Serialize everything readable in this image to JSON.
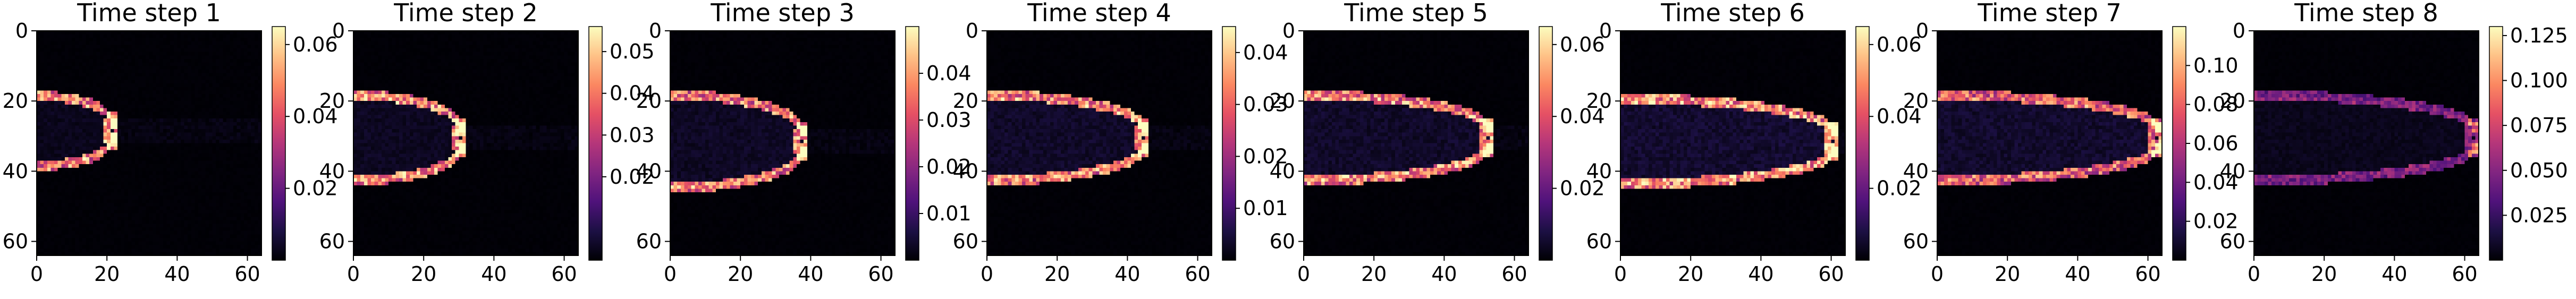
{
  "chart_data": {
    "type": "heatmap",
    "colormap": "magma",
    "colormap_stops": [
      "#000004",
      "#1c1044",
      "#4f127b",
      "#812581",
      "#b5367a",
      "#e55064",
      "#fb8761",
      "#fec287",
      "#fcfdbf"
    ],
    "grid": false,
    "panels": [
      {
        "title": "Time step 1",
        "xticks": [
          0,
          20,
          40,
          60
        ],
        "yticks": [
          0,
          20,
          40,
          60
        ],
        "xlim": [
          0,
          64
        ],
        "ylim": [
          64,
          0
        ],
        "colorbar": {
          "range": [
            0,
            0.065
          ],
          "ticks": [
            0.02,
            0.04,
            0.06
          ],
          "tick_labels": [
            "0.02",
            "0.04",
            "0.06"
          ]
        },
        "front": {
          "nose_x": 21,
          "center_y": 28,
          "half_width": 9,
          "tail_x": 0,
          "peak": 0.062,
          "smear": 0.25
        }
      },
      {
        "title": "Time step 2",
        "xticks": [
          0,
          20,
          40,
          60
        ],
        "yticks": [
          0,
          20,
          40,
          60
        ],
        "xlim": [
          0,
          64
        ],
        "ylim": [
          64,
          0
        ],
        "colorbar": {
          "range": [
            0,
            0.056
          ],
          "ticks": [
            0.02,
            0.03,
            0.04,
            0.05
          ],
          "tick_labels": [
            "0.02",
            "0.03",
            "0.04",
            "0.05"
          ]
        },
        "front": {
          "nose_x": 30,
          "center_y": 30,
          "half_width": 11,
          "tail_x": 0,
          "peak": 0.054,
          "smear": 0.3
        }
      },
      {
        "title": "Time step 3",
        "xticks": [
          0,
          20,
          40,
          60
        ],
        "yticks": [
          0,
          20,
          40,
          60
        ],
        "xlim": [
          0,
          64
        ],
        "ylim": [
          64,
          0
        ],
        "colorbar": {
          "range": [
            0,
            0.05
          ],
          "ticks": [
            0.01,
            0.02,
            0.03,
            0.04
          ],
          "tick_labels": [
            "0.01",
            "0.02",
            "0.03",
            "0.04"
          ]
        },
        "front": {
          "nose_x": 37,
          "center_y": 31,
          "half_width": 12,
          "tail_x": 0,
          "peak": 0.046,
          "smear": 0.35
        }
      },
      {
        "title": "Time step 4",
        "xticks": [
          0,
          20,
          40,
          60
        ],
        "yticks": [
          0,
          20,
          40,
          60
        ],
        "xlim": [
          0,
          64
        ],
        "ylim": [
          64,
          0
        ],
        "colorbar": {
          "range": [
            0,
            0.045
          ],
          "ticks": [
            0.01,
            0.02,
            0.03,
            0.04
          ],
          "tick_labels": [
            "0.01",
            "0.02",
            "0.03",
            "0.04"
          ]
        },
        "front": {
          "nose_x": 44,
          "center_y": 30,
          "half_width": 11,
          "tail_x": 0,
          "peak": 0.042,
          "smear": 0.4
        }
      },
      {
        "title": "Time step 5",
        "xticks": [
          0,
          20,
          40,
          60
        ],
        "yticks": [
          0,
          20,
          40,
          60
        ],
        "xlim": [
          0,
          64
        ],
        "ylim": [
          64,
          0
        ],
        "colorbar": {
          "range": [
            0,
            0.065
          ],
          "ticks": [
            0.02,
            0.04,
            0.06
          ],
          "tick_labels": [
            "0.02",
            "0.04",
            "0.06"
          ]
        },
        "front": {
          "nose_x": 52,
          "center_y": 30,
          "half_width": 11,
          "tail_x": 0,
          "peak": 0.062,
          "smear": 0.4
        }
      },
      {
        "title": "Time step 6",
        "xticks": [
          0,
          20,
          40,
          60
        ],
        "yticks": [
          0,
          20,
          40,
          60
        ],
        "xlim": [
          0,
          64
        ],
        "ylim": [
          64,
          0
        ],
        "colorbar": {
          "range": [
            0,
            0.065
          ],
          "ticks": [
            0.02,
            0.04,
            0.06
          ],
          "tick_labels": [
            "0.02",
            "0.04",
            "0.06"
          ]
        },
        "front": {
          "nose_x": 60,
          "center_y": 31,
          "half_width": 11,
          "tail_x": 0,
          "peak": 0.064,
          "smear": 0.45
        }
      },
      {
        "title": "Time step 7",
        "xticks": [
          0,
          20,
          40,
          60
        ],
        "yticks": [
          0,
          20,
          40,
          60
        ],
        "xlim": [
          0,
          64
        ],
        "ylim": [
          64,
          0
        ],
        "colorbar": {
          "range": [
            0,
            0.12
          ],
          "ticks": [
            0.02,
            0.04,
            0.06,
            0.08,
            0.1
          ],
          "tick_labels": [
            "0.02",
            "0.04",
            "0.06",
            "0.08",
            "0.10"
          ]
        },
        "front": {
          "nose_x": 62,
          "center_y": 30,
          "half_width": 11,
          "tail_x": 0,
          "peak": 0.1,
          "smear": 0.5
        }
      },
      {
        "title": "Time step 8",
        "xticks": [
          0,
          20,
          40,
          60
        ],
        "yticks": [
          0,
          20,
          40,
          60
        ],
        "xlim": [
          0,
          64
        ],
        "ylim": [
          64,
          0
        ],
        "colorbar": {
          "range": [
            0,
            0.13
          ],
          "ticks": [
            0.025,
            0.05,
            0.075,
            0.1,
            0.125
          ],
          "tick_labels": [
            "0.025",
            "0.050",
            "0.075",
            "0.100",
            "0.125"
          ]
        },
        "front": {
          "nose_x": 62,
          "center_y": 30,
          "half_width": 11,
          "tail_x": 0,
          "peak": 0.06,
          "smear": 0.5
        }
      }
    ]
  }
}
